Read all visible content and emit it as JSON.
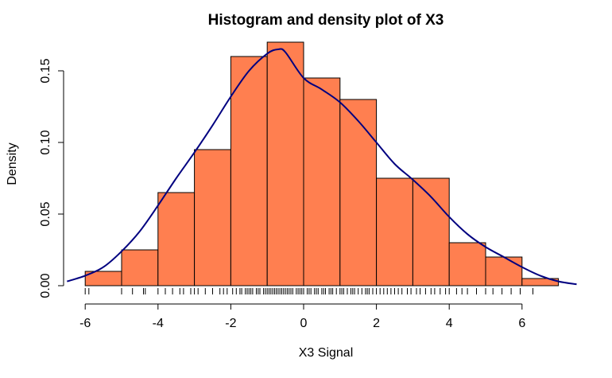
{
  "chart_data": {
    "type": "histogram",
    "title": "Histogram and density plot of X3",
    "xlabel": "X3 Signal",
    "ylabel": "Density",
    "xlim": [
      -6.5,
      7.5
    ],
    "ylim": [
      0,
      0.17
    ],
    "x_ticks": [
      -6,
      -4,
      -2,
      0,
      2,
      4,
      6
    ],
    "x_tick_labels": [
      "-6",
      "-4",
      "-2",
      "0",
      "2",
      "4",
      "6"
    ],
    "y_ticks": [
      0.0,
      0.05,
      0.1,
      0.15
    ],
    "y_tick_labels": [
      "0.00",
      "0.05",
      "0.10",
      "0.15"
    ],
    "bins": [
      {
        "start": -6,
        "end": -5,
        "density": 0.01
      },
      {
        "start": -5,
        "end": -4,
        "density": 0.025
      },
      {
        "start": -4,
        "end": -3,
        "density": 0.065
      },
      {
        "start": -3,
        "end": -2,
        "density": 0.095
      },
      {
        "start": -2,
        "end": -1,
        "density": 0.16
      },
      {
        "start": -1,
        "end": 0,
        "density": 0.17
      },
      {
        "start": 0,
        "end": 1,
        "density": 0.145
      },
      {
        "start": 1,
        "end": 2,
        "density": 0.13
      },
      {
        "start": 2,
        "end": 3,
        "density": 0.075
      },
      {
        "start": 3,
        "end": 4,
        "density": 0.075
      },
      {
        "start": 4,
        "end": 5,
        "density": 0.03
      },
      {
        "start": 5,
        "end": 6,
        "density": 0.02
      },
      {
        "start": 6,
        "end": 7,
        "density": 0.005
      }
    ],
    "density_curve": {
      "color": "#000080",
      "x": [
        -6.5,
        -6,
        -5.5,
        -5,
        -4.5,
        -4,
        -3.5,
        -3,
        -2.5,
        -2,
        -1.5,
        -1,
        -0.7,
        -0.5,
        0,
        0.5,
        1,
        1.5,
        2,
        2.5,
        3,
        3.5,
        4,
        4.5,
        5,
        5.5,
        6,
        6.5,
        7,
        7.5
      ],
      "y": [
        0.003,
        0.007,
        0.013,
        0.024,
        0.038,
        0.056,
        0.075,
        0.093,
        0.112,
        0.132,
        0.15,
        0.162,
        0.165,
        0.163,
        0.145,
        0.137,
        0.128,
        0.115,
        0.1,
        0.085,
        0.074,
        0.062,
        0.048,
        0.036,
        0.027,
        0.02,
        0.013,
        0.007,
        0.003,
        0.001
      ]
    },
    "rug": [
      -6.0,
      -5.9,
      -5.0,
      -4.7,
      -4.4,
      -4.35,
      -4.0,
      -3.8,
      -3.6,
      -3.4,
      -3.3,
      -3.1,
      -3.0,
      -2.9,
      -2.7,
      -2.5,
      -2.3,
      -2.2,
      -2.1,
      -1.95,
      -1.85,
      -1.75,
      -1.7,
      -1.6,
      -1.55,
      -1.5,
      -1.45,
      -1.4,
      -1.3,
      -1.25,
      -1.2,
      -1.1,
      -1.05,
      -1.0,
      -0.95,
      -0.9,
      -0.85,
      -0.8,
      -0.75,
      -0.7,
      -0.65,
      -0.6,
      -0.55,
      -0.5,
      -0.45,
      -0.4,
      -0.35,
      -0.3,
      -0.2,
      -0.15,
      -0.1,
      -0.05,
      0.0,
      0.1,
      0.15,
      0.2,
      0.3,
      0.35,
      0.4,
      0.5,
      0.55,
      0.6,
      0.7,
      0.75,
      0.8,
      0.9,
      1.0,
      1.05,
      1.1,
      1.2,
      1.3,
      1.35,
      1.4,
      1.5,
      1.6,
      1.7,
      1.75,
      1.8,
      1.9,
      2.0,
      2.1,
      2.2,
      2.3,
      2.4,
      2.5,
      2.6,
      2.7,
      2.85,
      2.95,
      3.1,
      3.2,
      3.35,
      3.5,
      3.6,
      3.75,
      3.9,
      4.0,
      4.2,
      4.35,
      4.5,
      4.75,
      5.0,
      5.2,
      5.45,
      5.7,
      5.95,
      6.3
    ],
    "colors": {
      "bar_fill": "#ff7f50",
      "bar_stroke": "#000000",
      "density_line": "#000080"
    }
  }
}
